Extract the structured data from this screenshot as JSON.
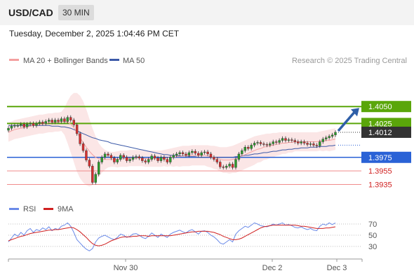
{
  "header": {
    "symbol": "USD/CAD",
    "timeframe": "30 MIN"
  },
  "timestamp": "Tuesday, December 2, 2025 1:04:46 PM CET",
  "legend": {
    "ma20_label": "MA 20 + Bollinger Bands",
    "ma50_label": "MA 50",
    "credit": "Research © 2025 Trading Central"
  },
  "rsi_legend": {
    "rsi_label": "RSI",
    "ma_label": "9MA"
  },
  "colors": {
    "resistance": "#5aa60a",
    "pivot": "#2a62d6",
    "support": "#f08b8b",
    "price_tag": "#333333",
    "candle_up": "#2c9b2c",
    "candle_down": "#d63030",
    "ma20": "#f4a0a0",
    "ma50": "#3c5aa8",
    "band": "#fbe3e3",
    "rsi": "#6a8ae8",
    "rsi_ma": "#d02020",
    "arrow": "#2f5fa8"
  },
  "chart_data": {
    "type": "candlestick",
    "instrument": "USD/CAD",
    "ylim": [
      1.392,
      1.4075
    ],
    "x_ticks": [
      "Nov 30",
      "Dec 2",
      "Dec 3"
    ],
    "current_price": 1.4012,
    "levels": [
      {
        "label": "1.4050",
        "value": 1.405,
        "kind": "resistance"
      },
      {
        "label": "1.4025",
        "value": 1.4025,
        "kind": "resistance"
      },
      {
        "label": "1.3975",
        "value": 1.3975,
        "kind": "pivot"
      },
      {
        "label": "1.3955",
        "value": 1.3955,
        "kind": "support"
      },
      {
        "label": "1.3935",
        "value": 1.3935,
        "kind": "support"
      }
    ],
    "close_series": [
      1.4018,
      1.4021,
      1.4022,
      1.4022,
      1.4024,
      1.402,
      1.4024,
      1.4025,
      1.4022,
      1.4025,
      1.4027,
      1.4025,
      1.4028,
      1.403,
      1.4027,
      1.403,
      1.4028,
      1.4032,
      1.4028,
      1.4034,
      1.403,
      1.4023,
      1.401,
      1.3995,
      1.3985,
      1.3971,
      1.3962,
      1.3938,
      1.395,
      1.3968,
      1.3975,
      1.398,
      1.3978,
      1.3974,
      1.3968,
      1.3972,
      1.3978,
      1.3975,
      1.397,
      1.3972,
      1.3975,
      1.3976,
      1.3974,
      1.397,
      1.3968,
      1.3972,
      1.3977,
      1.3974,
      1.397,
      1.3975,
      1.3972,
      1.3968,
      1.3975,
      1.3978,
      1.398,
      1.3982,
      1.398,
      1.3978,
      1.3982,
      1.3984,
      1.3981,
      1.3978,
      1.3982,
      1.3983,
      1.398,
      1.3975,
      1.3972,
      1.3968,
      1.3961,
      1.396,
      1.3962,
      1.3965,
      1.396,
      1.3972,
      1.398,
      1.3985,
      1.399,
      1.3988,
      1.3993,
      1.3996,
      1.3997,
      1.3995,
      1.3994,
      1.3993,
      1.3995,
      1.3998,
      1.3997,
      1.4,
      1.4003,
      1.4,
      1.4001,
      1.4,
      1.3998,
      1.3996,
      1.3998,
      1.3996,
      1.3994,
      1.3995,
      1.3993,
      1.3992,
      1.3998,
      1.4002,
      1.4004,
      1.4006,
      1.4008,
      1.4012
    ],
    "ma20_series": [
      1.4012,
      1.4014,
      1.4016,
      1.4017,
      1.4018,
      1.4019,
      1.402,
      1.4021,
      1.4022,
      1.4023,
      1.4024,
      1.4024,
      1.4025,
      1.4026,
      1.4026,
      1.4027,
      1.4027,
      1.4028,
      1.4028,
      1.4027,
      1.4024,
      1.4019,
      1.4012,
      1.4004,
      1.3997,
      1.399,
      1.3984,
      1.3979,
      1.3975,
      1.3973,
      1.3972,
      1.3972,
      1.3972,
      1.3972,
      1.3972,
      1.3972,
      1.3973,
      1.3973,
      1.3973,
      1.3974,
      1.3974,
      1.3974,
      1.3974,
      1.3974,
      1.3973,
      1.3973,
      1.3973,
      1.3973,
      1.3973,
      1.3973,
      1.3974,
      1.3974,
      1.3975,
      1.3975,
      1.3976,
      1.3976,
      1.3977,
      1.3977,
      1.3977,
      1.3978,
      1.3978,
      1.3978,
      1.3978,
      1.3978,
      1.3977,
      1.3976,
      1.3975,
      1.3974,
      1.3972,
      1.3971,
      1.3971,
      1.3971,
      1.3972,
      1.3973,
      1.3975,
      1.3977,
      1.3979,
      1.3981,
      1.3983,
      1.3985,
      1.3987,
      1.3988,
      1.399,
      1.3991,
      1.3992,
      1.3993,
      1.3994,
      1.3995,
      1.3996,
      1.3996,
      1.3997,
      1.3997,
      1.3998,
      1.3998,
      1.3998,
      1.3998,
      1.3998,
      1.3998,
      1.3998,
      1.3998,
      1.3999,
      1.3999,
      1.4,
      1.4,
      1.4001,
      1.4002
    ],
    "bb_upper": [
      1.4026,
      1.4028,
      1.403,
      1.4031,
      1.4032,
      1.4033,
      1.4034,
      1.4035,
      1.4036,
      1.4037,
      1.4038,
      1.4038,
      1.4039,
      1.404,
      1.404,
      1.4041,
      1.4041,
      1.4042,
      1.4048,
      1.4058,
      1.4066,
      1.407,
      1.407,
      1.4066,
      1.4058,
      1.4046,
      1.4032,
      1.4018,
      1.4006,
      1.3996,
      1.399,
      1.3986,
      1.3984,
      1.3983,
      1.3983,
      1.3984,
      1.3985,
      1.3985,
      1.3985,
      1.3986,
      1.3986,
      1.3986,
      1.3986,
      1.3986,
      1.3985,
      1.3985,
      1.3985,
      1.3985,
      1.3985,
      1.3985,
      1.3986,
      1.3987,
      1.3988,
      1.3989,
      1.399,
      1.3991,
      1.3992,
      1.3992,
      1.3992,
      1.3993,
      1.3993,
      1.3993,
      1.3993,
      1.3993,
      1.3993,
      1.3992,
      1.3992,
      1.3991,
      1.399,
      1.399,
      1.399,
      1.3991,
      1.3992,
      1.3994,
      1.3996,
      1.3998,
      1.4,
      1.4002,
      1.4004,
      1.4006,
      1.4007,
      1.4008,
      1.4009,
      1.401,
      1.401,
      1.4011,
      1.4011,
      1.4012,
      1.4012,
      1.4012,
      1.4012,
      1.4012,
      1.4012,
      1.4012,
      1.4012,
      1.4012,
      1.4012,
      1.4012,
      1.4012,
      1.4012,
      1.4013,
      1.4014,
      1.4015,
      1.4016,
      1.4017,
      1.4018
    ],
    "bb_lower": [
      1.3998,
      1.4,
      1.4002,
      1.4003,
      1.4004,
      1.4005,
      1.4006,
      1.4007,
      1.4008,
      1.4009,
      1.401,
      1.401,
      1.4011,
      1.4012,
      1.4012,
      1.4013,
      1.4013,
      1.4014,
      1.4008,
      1.3996,
      1.3982,
      1.3968,
      1.3954,
      1.3944,
      1.3938,
      1.3934,
      1.3932,
      1.3934,
      1.394,
      1.3946,
      1.3952,
      1.3957,
      1.396,
      1.3961,
      1.3961,
      1.396,
      1.3961,
      1.3961,
      1.3961,
      1.3962,
      1.3962,
      1.3962,
      1.3962,
      1.3962,
      1.3961,
      1.3961,
      1.3961,
      1.3961,
      1.3961,
      1.3961,
      1.3962,
      1.3961,
      1.3962,
      1.3961,
      1.3962,
      1.3961,
      1.3962,
      1.3962,
      1.3962,
      1.3963,
      1.3963,
      1.3963,
      1.3963,
      1.3963,
      1.3961,
      1.396,
      1.3958,
      1.3957,
      1.3954,
      1.3952,
      1.3952,
      1.3951,
      1.3952,
      1.3952,
      1.3954,
      1.3956,
      1.3958,
      1.396,
      1.3962,
      1.3964,
      1.3967,
      1.3968,
      1.3971,
      1.3972,
      1.3974,
      1.3975,
      1.3977,
      1.3978,
      1.398,
      1.398,
      1.3982,
      1.3982,
      1.3984,
      1.3984,
      1.3984,
      1.3984,
      1.3984,
      1.3984,
      1.3984,
      1.3984,
      1.3985,
      1.3984,
      1.3985,
      1.3984,
      1.3985,
      1.3986
    ],
    "ma50_series": [
      1.4022,
      1.4022,
      1.4022,
      1.4022,
      1.4022,
      1.4022,
      1.4022,
      1.4022,
      1.4022,
      1.4022,
      1.4022,
      1.4022,
      1.4022,
      1.4022,
      1.4021,
      1.4021,
      1.4021,
      1.402,
      1.402,
      1.4019,
      1.4018,
      1.4016,
      1.4014,
      1.4012,
      1.401,
      1.4008,
      1.4006,
      1.4004,
      1.4003,
      1.4001,
      1.4,
      1.3999,
      1.3998,
      1.3996,
      1.3995,
      1.3994,
      1.3993,
      1.3992,
      1.3991,
      1.399,
      1.3989,
      1.3988,
      1.3987,
      1.3986,
      1.3985,
      1.3984,
      1.3983,
      1.3982,
      1.3981,
      1.398,
      1.3979,
      1.3979,
      1.3978,
      1.3978,
      1.3978,
      1.3977,
      1.3977,
      1.3977,
      1.3976,
      1.3976,
      1.3976,
      1.3975,
      1.3975,
      1.3975,
      1.3975,
      1.3975,
      1.3975,
      1.3975,
      1.3975,
      1.3975,
      1.3975,
      1.3975,
      1.3975,
      1.3976,
      1.3976,
      1.3977,
      1.3978,
      1.3978,
      1.3979,
      1.398,
      1.398,
      1.3981,
      1.3982,
      1.3982,
      1.3983,
      1.3984,
      1.3984,
      1.3985,
      1.3986,
      1.3986,
      1.3987,
      1.3987,
      1.3988,
      1.3988,
      1.3989,
      1.3989,
      1.3989,
      1.399,
      1.399,
      1.399,
      1.3991,
      1.3991,
      1.3991,
      1.3992,
      1.3992,
      1.3993
    ],
    "rsi": {
      "levels": [
        70,
        50,
        30
      ],
      "rsi_series": [
        38,
        45,
        52,
        48,
        55,
        50,
        58,
        62,
        55,
        60,
        58,
        63,
        60,
        65,
        58,
        62,
        60,
        66,
        68,
        72,
        66,
        55,
        42,
        36,
        30,
        25,
        22,
        26,
        38,
        45,
        48,
        50,
        47,
        44,
        42,
        46,
        52,
        50,
        46,
        48,
        52,
        53,
        50,
        46,
        44,
        48,
        54,
        50,
        46,
        52,
        49,
        46,
        52,
        55,
        57,
        59,
        56,
        54,
        58,
        60,
        56,
        52,
        57,
        58,
        55,
        50,
        47,
        42,
        36,
        34,
        38,
        42,
        38,
        52,
        58,
        62,
        66,
        64,
        68,
        72,
        70,
        67,
        66,
        65,
        67,
        70,
        68,
        70,
        72,
        68,
        69,
        67,
        64,
        63,
        65,
        62,
        60,
        62,
        59,
        58,
        66,
        70,
        68,
        72,
        69,
        72
      ],
      "ma_series": [
        40,
        42,
        44,
        46,
        48,
        49,
        51,
        53,
        54,
        55,
        56,
        57,
        58,
        59,
        59,
        60,
        60,
        61,
        62,
        63,
        64,
        63,
        60,
        56,
        51,
        46,
        40,
        35,
        32,
        31,
        32,
        34,
        37,
        40,
        42,
        44,
        46,
        47,
        47,
        47,
        48,
        48,
        49,
        49,
        49,
        48,
        49,
        49,
        49,
        49,
        49,
        49,
        49,
        50,
        51,
        52,
        53,
        54,
        55,
        56,
        56,
        57,
        57,
        57,
        57,
        56,
        55,
        53,
        51,
        48,
        46,
        44,
        42,
        42,
        43,
        45,
        48,
        51,
        54,
        57,
        60,
        63,
        65,
        66,
        67,
        68,
        68,
        68,
        68,
        68,
        68,
        68,
        68,
        67,
        66,
        66,
        65,
        64,
        63,
        62,
        62,
        62,
        63,
        63,
        64,
        65
      ]
    }
  }
}
